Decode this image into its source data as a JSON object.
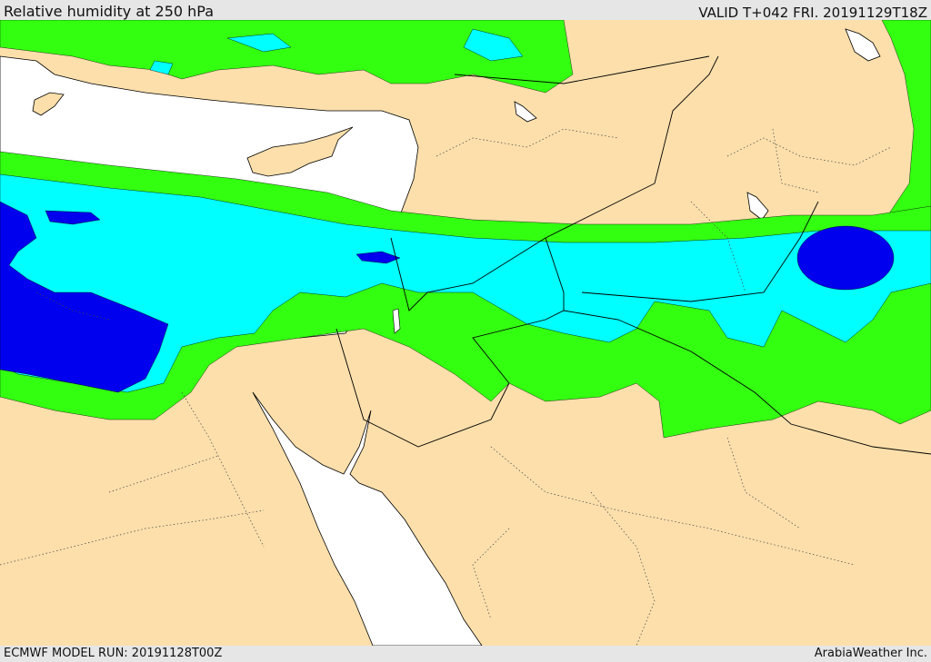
{
  "header": {
    "title": "Relative humidity at 250 hPa",
    "valid": "VALID T+042 FRI. 20191129T18Z"
  },
  "footer": {
    "model_run": "ECMWF MODEL RUN: 20191128T00Z",
    "credit": "ArabiaWeather Inc."
  },
  "colors": {
    "land": "#fcdfab",
    "sea": "#ffffff",
    "humidity_low": "#33ff11",
    "humidity_mid": "#00ffff",
    "humidity_high": "#0000ee",
    "border": "#000000"
  }
}
